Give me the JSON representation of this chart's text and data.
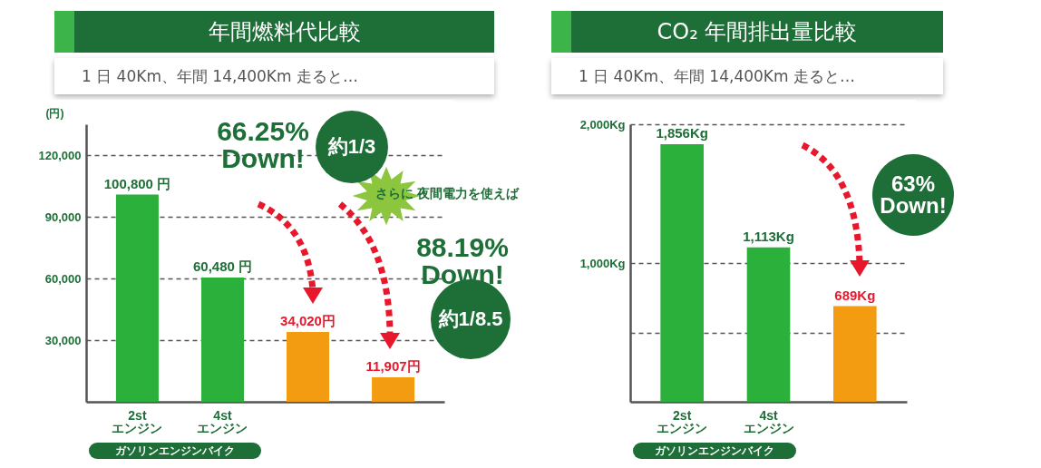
{
  "chart_data": [
    {
      "type": "bar",
      "title": "年間燃料代比較",
      "subtitle": "1 日 40Km、年間 14,400Km 走ると…",
      "ylabel": "(円)",
      "categories": [
        "2st\nエンジン",
        "4st\nエンジン",
        null,
        null
      ],
      "values": [
        100800,
        60480,
        34020,
        11907
      ],
      "colors": [
        "#2bb03b",
        "#2bb03b",
        "#f39c12",
        "#f39c12"
      ],
      "value_labels": [
        "100,800 円",
        "60,480 円",
        "34,020円",
        "11,907円"
      ],
      "ylim": [
        0,
        135000
      ],
      "yticks": [
        {
          "value": 30000,
          "label": "30,000"
        },
        {
          "value": 60000,
          "label": "60,000"
        },
        {
          "value": 90000,
          "label": "90,000"
        },
        {
          "value": 120000,
          "label": "120,000"
        }
      ],
      "grid": "y",
      "annotations": [
        "66.25%\nDown!",
        "約1/3",
        "さらに 夜間電力を使えば",
        "88.19%\nDown!",
        "約1/8.5",
        "ガソリンエンジンバイク"
      ]
    },
    {
      "type": "bar",
      "title": "CO₂ 年間排出量比較",
      "subtitle": "1 日 40Km、年間 14,400Km 走ると…",
      "categories": [
        "2st\nエンジン",
        "4st\nエンジン",
        null
      ],
      "values": [
        1856,
        1113,
        689
      ],
      "colors": [
        "#2bb03b",
        "#2bb03b",
        "#f39c12"
      ],
      "value_labels": [
        "1,856Kg",
        "1,113Kg",
        "689Kg"
      ],
      "ylim": [
        0,
        2000
      ],
      "yticks": [
        {
          "value": 500,
          "label": null
        },
        {
          "value": 1000,
          "label": "1,000Kg"
        },
        {
          "value": 2000,
          "label": "2,000Kg"
        }
      ],
      "grid": "y",
      "annotations": [
        "63%\nDown!",
        "ガソリンエンジンバイク"
      ]
    }
  ]
}
